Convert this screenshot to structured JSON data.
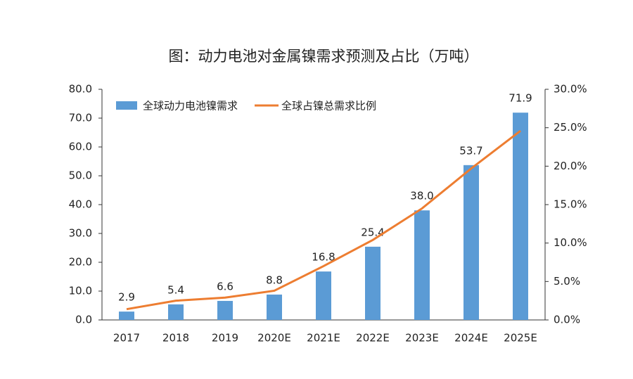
{
  "chart_data": {
    "type": "bar",
    "title": "图：动力电池对金属镍需求预测及占比（万吨）",
    "categories": [
      "2017",
      "2018",
      "2019",
      "2020E",
      "2021E",
      "2022E",
      "2023E",
      "2024E",
      "2025E"
    ],
    "series": [
      {
        "name": "全球动力电池镍需求",
        "type": "bar",
        "color": "#5b9bd5",
        "values": [
          2.9,
          5.4,
          6.6,
          8.8,
          16.8,
          25.4,
          38.0,
          53.7,
          71.9
        ],
        "value_labels": [
          "2.9",
          "5.4",
          "6.6",
          "8.8",
          "16.8",
          "25.4",
          "38.0",
          "53.7",
          "71.9"
        ]
      },
      {
        "name": "全球占镍总需求比例",
        "type": "line",
        "color": "#ed7d31",
        "axis": "y2",
        "values": [
          1.4,
          2.5,
          2.9,
          3.8,
          7.0,
          10.4,
          14.5,
          19.7,
          24.6
        ]
      }
    ],
    "ylim": [
      0,
      80
    ],
    "yticks": [
      {
        "value": 0,
        "label": "0.0"
      },
      {
        "value": 10,
        "label": "10.0"
      },
      {
        "value": 20,
        "label": "20.0"
      },
      {
        "value": 30,
        "label": "30.0"
      },
      {
        "value": 40,
        "label": "40.0"
      },
      {
        "value": 50,
        "label": "50.0"
      },
      {
        "value": 60,
        "label": "60.0"
      },
      {
        "value": 70,
        "label": "70.0"
      },
      {
        "value": 80,
        "label": "80.0"
      }
    ],
    "y2lim": [
      0,
      30
    ],
    "y2ticks": [
      {
        "value": 0,
        "label": "0.0%"
      },
      {
        "value": 5,
        "label": "5.0%"
      },
      {
        "value": 10,
        "label": "10.0%"
      },
      {
        "value": 15,
        "label": "15.0%"
      },
      {
        "value": 20,
        "label": "20.0%"
      },
      {
        "value": 25,
        "label": "25.0%"
      },
      {
        "value": 30,
        "label": "30.0%"
      }
    ],
    "legend": "top-left"
  }
}
